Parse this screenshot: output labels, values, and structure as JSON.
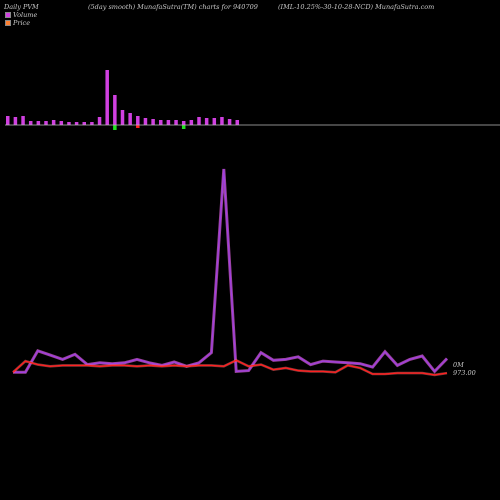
{
  "header": {
    "left": "Daily PVM",
    "middle": "(5day smooth) MunafaSutra(TM) charts for 940709",
    "right": "(IML-10.25%-30-10-28-NCD) MunafaSutra.com"
  },
  "legend": {
    "volume_label": "Volume",
    "price_label": "Price",
    "volume_color": "#d040e0",
    "price_color": "#ff8030"
  },
  "labels": {
    "volume_right": "0M",
    "price_right": "973.00"
  },
  "colors": {
    "background": "#000000",
    "bar_up": "#d040e0",
    "bar_down_red": "#ff2020",
    "bar_down_green": "#20e020",
    "axis_line": "#bbbbbb",
    "volume_line": "#a040e0",
    "price_line": "#ff2020"
  },
  "chart_data": {
    "type": "bar",
    "volume_bars": {
      "up": [
        9,
        8,
        9,
        4,
        4,
        4,
        5,
        4,
        3,
        3,
        3,
        3,
        8,
        55,
        30,
        15,
        12,
        9,
        7,
        6,
        5,
        5,
        5,
        4,
        5,
        8,
        7,
        7,
        8,
        6,
        5
      ],
      "down": [
        0,
        0,
        0,
        0,
        0,
        0,
        0,
        0,
        0,
        0,
        0,
        0,
        0,
        0,
        5,
        0,
        0,
        3,
        0,
        0,
        0,
        0,
        0,
        4,
        0,
        0,
        0,
        0,
        0,
        0,
        0
      ],
      "down_color": [
        "none",
        "none",
        "none",
        "none",
        "none",
        "none",
        "none",
        "none",
        "none",
        "none",
        "none",
        "none",
        "none",
        "none",
        "green",
        "none",
        "none",
        "red",
        "none",
        "none",
        "none",
        "none",
        "none",
        "green",
        "none",
        "none",
        "none",
        "none",
        "none",
        "none",
        "none"
      ]
    },
    "line_series": {
      "volume": [
        975,
        975,
        1000,
        995,
        990,
        996,
        984,
        986,
        985,
        986,
        990,
        986,
        983,
        987,
        982,
        986,
        998,
        1212,
        976,
        977,
        998,
        989,
        990,
        993,
        984,
        988,
        987,
        986,
        985,
        981,
        999,
        983,
        990,
        994,
        976,
        991
      ],
      "price": [
        975,
        988,
        984,
        982,
        983,
        983,
        983,
        982,
        983,
        983,
        982,
        983,
        982,
        983,
        982,
        983,
        983,
        982,
        989,
        982,
        984,
        978,
        980,
        977,
        976,
        976,
        975,
        983,
        980,
        973,
        973,
        974,
        974,
        974,
        972,
        974
      ]
    }
  }
}
